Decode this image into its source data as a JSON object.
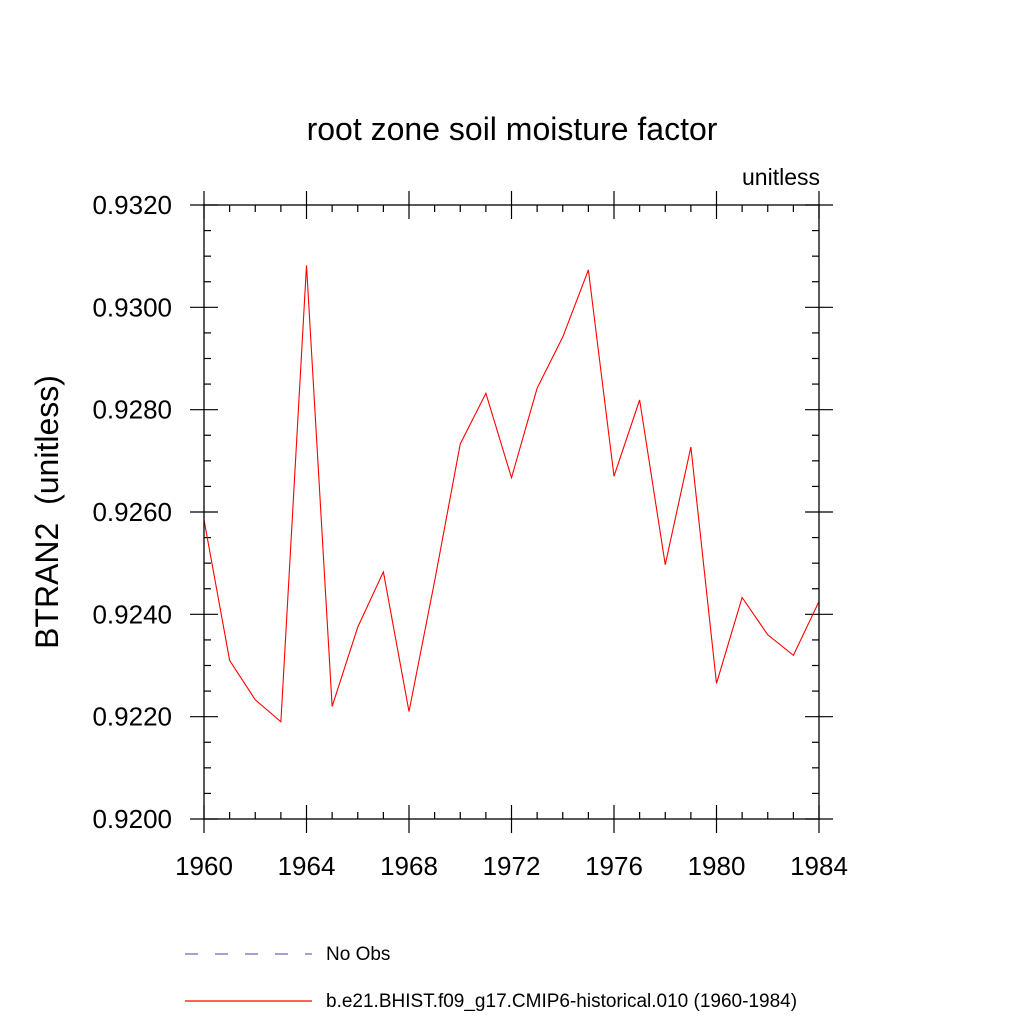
{
  "chart_data": {
    "type": "line",
    "title": "root zone soil moisture factor",
    "units_label": "unitless",
    "ylabel": "BTRAN2  (unitless)",
    "xlabel": "",
    "xlim": [
      1960,
      1984
    ],
    "ylim": [
      0.92,
      0.932
    ],
    "x_ticks": [
      "1960",
      "1964",
      "1968",
      "1972",
      "1976",
      "1980",
      "1984"
    ],
    "y_ticks": [
      "0.9200",
      "0.9220",
      "0.9240",
      "0.9260",
      "0.9280",
      "0.9300",
      "0.9320"
    ],
    "x": [
      1960,
      1961,
      1962,
      1963,
      1964,
      1965,
      1966,
      1967,
      1968,
      1969,
      1970,
      1971,
      1972,
      1973,
      1974,
      1975,
      1976,
      1977,
      1978,
      1979,
      1980,
      1981,
      1982,
      1983,
      1984
    ],
    "series": [
      {
        "name": "b.e21.BHIST.f09_g17.CMIP6-historical.010 (1960-1984)",
        "color": "#ff0000",
        "values": [
          0.92585,
          0.9231,
          0.92233,
          0.9219,
          0.93082,
          0.9222,
          0.92375,
          0.92483,
          0.9221,
          0.92465,
          0.92733,
          0.92832,
          0.92667,
          0.92842,
          0.92942,
          0.93073,
          0.9267,
          0.92819,
          0.92497,
          0.92727,
          0.92265,
          0.92433,
          0.9236,
          0.9232,
          0.92425
        ]
      }
    ],
    "legend": [
      {
        "label": "No Obs",
        "color": "#6a6ab8",
        "style": "dashed"
      },
      {
        "label": "b.e21.BHIST.f09_g17.CMIP6-historical.010 (1960-1984)",
        "color": "#ff0000",
        "style": "solid"
      }
    ],
    "legend_position": "bottom",
    "grid": false
  }
}
